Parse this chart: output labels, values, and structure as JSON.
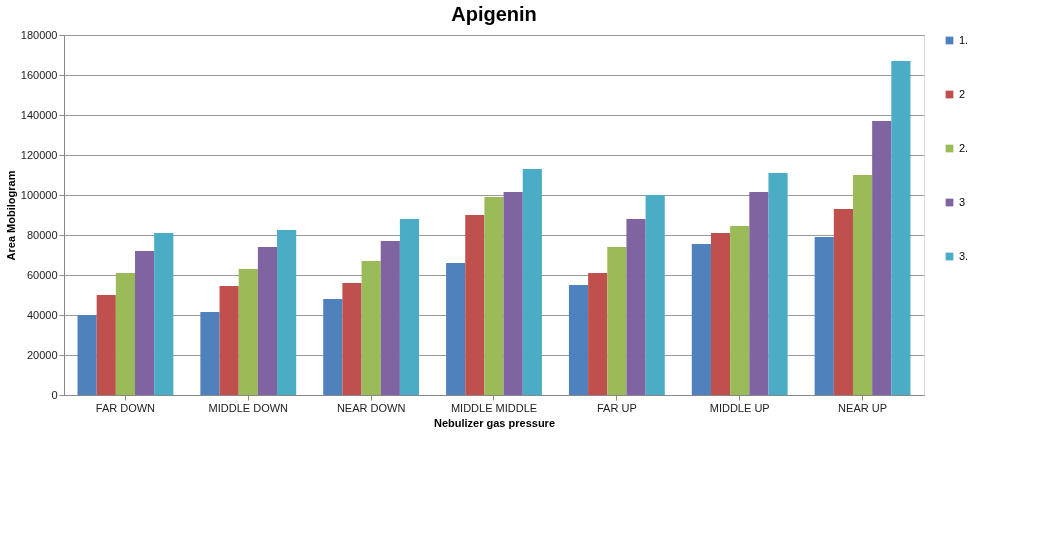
{
  "chart_data": {
    "type": "bar",
    "title": "Apigenin",
    "xlabel": "Nebulizer gas pressure",
    "ylabel": "Area Mobilogram",
    "categories": [
      "FAR DOWN",
      "MIDDLE DOWN",
      "NEAR DOWN",
      "MIDDLE MIDDLE",
      "FAR UP",
      "MIDDLE UP",
      "NEAR UP"
    ],
    "series": [
      {
        "name": "1.",
        "color": "#4f81bd",
        "values": [
          40000,
          41500,
          48000,
          66000,
          55000,
          75500,
          79000
        ]
      },
      {
        "name": "2",
        "color": "#c0504d",
        "values": [
          50000,
          54500,
          56000,
          90000,
          61000,
          81000,
          93000
        ]
      },
      {
        "name": "2.",
        "color": "#9bbb59",
        "values": [
          61000,
          63000,
          67000,
          99000,
          74000,
          84500,
          110000
        ]
      },
      {
        "name": "3",
        "color": "#8064a2",
        "values": [
          72000,
          74000,
          77000,
          101500,
          88000,
          101500,
          137000
        ]
      },
      {
        "name": "3.",
        "color": "#4bacc6",
        "values": [
          81000,
          82500,
          88000,
          113000,
          100000,
          111000,
          167000
        ]
      }
    ],
    "ylim": [
      0,
      180000
    ],
    "yticks": [
      0,
      20000,
      40000,
      60000,
      80000,
      100000,
      120000,
      140000,
      160000,
      180000
    ],
    "grid": "y",
    "legend": "right"
  }
}
